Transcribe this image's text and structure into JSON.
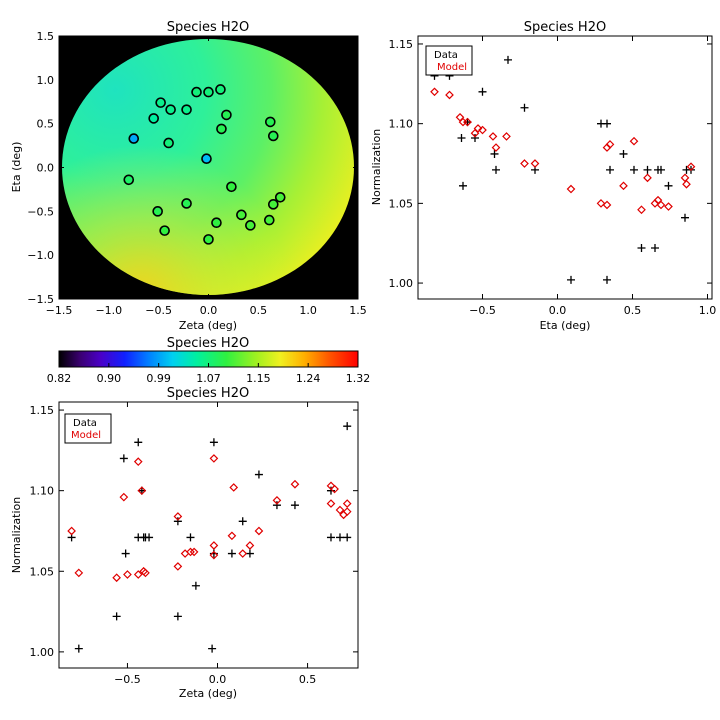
{
  "colors": {
    "data": "#000000",
    "model": "#e00000",
    "ink": "#000000",
    "background": "#000000"
  },
  "chart_data": [
    {
      "id": "map",
      "type": "heatmap",
      "title": "Species H2O",
      "xlabel": "Zeta (deg)",
      "ylabel": "Eta (deg)",
      "xlim": [
        -1.5,
        1.5
      ],
      "ylim": [
        -1.5,
        1.5
      ],
      "xticks": [
        -1.5,
        -1.0,
        -0.5,
        0.0,
        0.5,
        1.0,
        1.5
      ],
      "xticklabels": [
        "−1.5",
        "−1.0",
        "−0.5",
        "0.0",
        "0.5",
        "1.0",
        "1.5"
      ],
      "yticks": [
        -1.5,
        -1.0,
        -0.5,
        0.0,
        0.5,
        1.0,
        1.5
      ],
      "yticklabels": [
        "−1.5",
        "−1.0",
        "−0.5",
        "0.0",
        "0.5",
        "1.0",
        "1.5"
      ],
      "field_radius": 1.45,
      "points": [
        {
          "x": -0.75,
          "y": 0.33,
          "v": 0.99
        },
        {
          "x": -0.02,
          "y": 0.1,
          "v": 1.0
        },
        {
          "x": -0.55,
          "y": 0.56,
          "v": 1.05
        },
        {
          "x": -0.48,
          "y": 0.74,
          "v": 1.06
        },
        {
          "x": -0.38,
          "y": 0.66,
          "v": 1.06
        },
        {
          "x": -0.22,
          "y": 0.66,
          "v": 1.06
        },
        {
          "x": -0.12,
          "y": 0.86,
          "v": 1.07
        },
        {
          "x": 0.0,
          "y": 0.86,
          "v": 1.07
        },
        {
          "x": 0.12,
          "y": 0.89,
          "v": 1.07
        },
        {
          "x": -0.4,
          "y": 0.28,
          "v": 1.07
        },
        {
          "x": 0.62,
          "y": 0.52,
          "v": 1.09
        },
        {
          "x": 0.18,
          "y": 0.6,
          "v": 1.09
        },
        {
          "x": 0.65,
          "y": 0.36,
          "v": 1.09
        },
        {
          "x": 0.13,
          "y": 0.44,
          "v": 1.09
        },
        {
          "x": -0.8,
          "y": -0.14,
          "v": 1.08
        },
        {
          "x": 0.23,
          "y": -0.22,
          "v": 1.1
        },
        {
          "x": -0.22,
          "y": -0.41,
          "v": 1.09
        },
        {
          "x": -0.51,
          "y": -0.5,
          "v": 1.09
        },
        {
          "x": 0.72,
          "y": -0.34,
          "v": 1.11
        },
        {
          "x": 0.65,
          "y": -0.42,
          "v": 1.11
        },
        {
          "x": 0.33,
          "y": -0.54,
          "v": 1.11
        },
        {
          "x": 0.42,
          "y": -0.66,
          "v": 1.11
        },
        {
          "x": 0.61,
          "y": -0.6,
          "v": 1.11
        },
        {
          "x": 0.08,
          "y": -0.63,
          "v": 1.1
        },
        {
          "x": -0.44,
          "y": -0.72,
          "v": 1.1
        },
        {
          "x": 0.0,
          "y": -0.82,
          "v": 1.1
        }
      ]
    },
    {
      "id": "colorbar",
      "type": "heatmap",
      "title": "Species H2O",
      "range": [
        0.82,
        1.32
      ],
      "ticklabels": [
        "0.82",
        "0.90",
        "0.99",
        "1.07",
        "1.15",
        "1.24",
        "1.32"
      ]
    },
    {
      "id": "eta",
      "type": "scatter",
      "title": "Species H2O",
      "xlabel": "Eta (deg)",
      "ylabel": "Normalization",
      "xlim": [
        -0.93,
        1.03
      ],
      "ylim": [
        0.99,
        1.155
      ],
      "xticks": [
        -0.5,
        0.0,
        0.5,
        1.0
      ],
      "xticklabels": [
        "−0.5",
        "0.0",
        "0.5",
        "1.0"
      ],
      "yticks": [
        1.0,
        1.05,
        1.1,
        1.15
      ],
      "yticklabels": [
        "1.00",
        "1.05",
        "1.10",
        "1.15"
      ],
      "legend": [
        "Data",
        "Model"
      ],
      "legend_position": "top-left",
      "series": [
        {
          "name": "Data",
          "marker": "plus",
          "x": [
            -0.82,
            -0.72,
            -0.64,
            -0.63,
            -0.6,
            -0.55,
            -0.5,
            -0.42,
            -0.41,
            -0.33,
            -0.22,
            -0.15,
            0.09,
            0.29,
            0.33,
            0.33,
            0.35,
            0.44,
            0.51,
            0.56,
            0.6,
            0.65,
            0.67,
            0.69,
            0.74,
            0.85,
            0.86,
            0.89
          ],
          "y": [
            1.13,
            1.13,
            1.091,
            1.061,
            1.101,
            1.091,
            1.12,
            1.081,
            1.071,
            1.14,
            1.11,
            1.071,
            1.002,
            1.1,
            1.1,
            1.002,
            1.071,
            1.081,
            1.071,
            1.022,
            1.071,
            1.022,
            1.071,
            1.071,
            1.061,
            1.041,
            1.071,
            1.071
          ]
        },
        {
          "name": "Model",
          "marker": "diamond",
          "x": [
            -0.82,
            -0.72,
            -0.65,
            -0.63,
            -0.6,
            -0.55,
            -0.53,
            -0.5,
            -0.43,
            -0.41,
            -0.34,
            -0.22,
            -0.15,
            0.09,
            0.29,
            0.33,
            0.33,
            0.35,
            0.44,
            0.51,
            0.56,
            0.6,
            0.65,
            0.67,
            0.69,
            0.74,
            0.85,
            0.86,
            0.89
          ],
          "y": [
            1.12,
            1.118,
            1.104,
            1.101,
            1.101,
            1.094,
            1.097,
            1.096,
            1.092,
            1.085,
            1.092,
            1.075,
            1.075,
            1.059,
            1.05,
            1.085,
            1.049,
            1.087,
            1.061,
            1.089,
            1.046,
            1.066,
            1.05,
            1.052,
            1.049,
            1.048,
            1.066,
            1.062,
            1.073
          ]
        }
      ]
    },
    {
      "id": "zeta",
      "type": "scatter",
      "title": "Species H2O",
      "xlabel": "Zeta (deg)",
      "ylabel": "Normalization",
      "xlim": [
        -0.88,
        0.78
      ],
      "ylim": [
        0.99,
        1.155
      ],
      "xticks": [
        -0.5,
        0.0,
        0.5
      ],
      "xticklabels": [
        "−0.5",
        "0.0",
        "0.5"
      ],
      "yticks": [
        1.0,
        1.05,
        1.1,
        1.15
      ],
      "yticklabels": [
        "1.00",
        "1.05",
        "1.10",
        "1.15"
      ],
      "legend": [
        "Data",
        "Model"
      ],
      "legend_position": "top-left",
      "series": [
        {
          "name": "Data",
          "marker": "plus",
          "x": [
            -0.81,
            -0.77,
            -0.56,
            -0.52,
            -0.51,
            -0.44,
            -0.44,
            -0.42,
            -0.41,
            -0.4,
            -0.38,
            -0.22,
            -0.22,
            -0.15,
            -0.12,
            -0.03,
            -0.02,
            -0.02,
            0.08,
            0.14,
            0.18,
            0.23,
            0.33,
            0.43,
            0.63,
            0.63,
            0.68,
            0.72,
            0.72
          ],
          "y": [
            1.071,
            1.002,
            1.022,
            1.12,
            1.061,
            1.13,
            1.071,
            1.1,
            1.071,
            1.071,
            1.071,
            1.081,
            1.022,
            1.071,
            1.041,
            1.002,
            1.13,
            1.061,
            1.061,
            1.081,
            1.061,
            1.11,
            1.091,
            1.091,
            1.071,
            1.1,
            1.071,
            1.071,
            1.14
          ]
        },
        {
          "name": "Model",
          "marker": "diamond",
          "x": [
            -0.81,
            -0.77,
            -0.56,
            -0.52,
            -0.5,
            -0.44,
            -0.44,
            -0.42,
            -0.41,
            -0.4,
            -0.22,
            -0.22,
            -0.18,
            -0.15,
            -0.13,
            -0.02,
            -0.02,
            -0.02,
            0.08,
            0.09,
            0.14,
            0.18,
            0.23,
            0.33,
            0.43,
            0.63,
            0.63,
            0.65,
            0.68,
            0.7,
            0.72,
            0.72
          ],
          "y": [
            1.075,
            1.049,
            1.046,
            1.096,
            1.048,
            1.118,
            1.048,
            1.1,
            1.05,
            1.049,
            1.084,
            1.053,
            1.061,
            1.062,
            1.062,
            1.066,
            1.12,
            1.06,
            1.072,
            1.102,
            1.061,
            1.066,
            1.075,
            1.094,
            1.104,
            1.103,
            1.092,
            1.101,
            1.088,
            1.085,
            1.087,
            1.092
          ]
        }
      ]
    }
  ]
}
